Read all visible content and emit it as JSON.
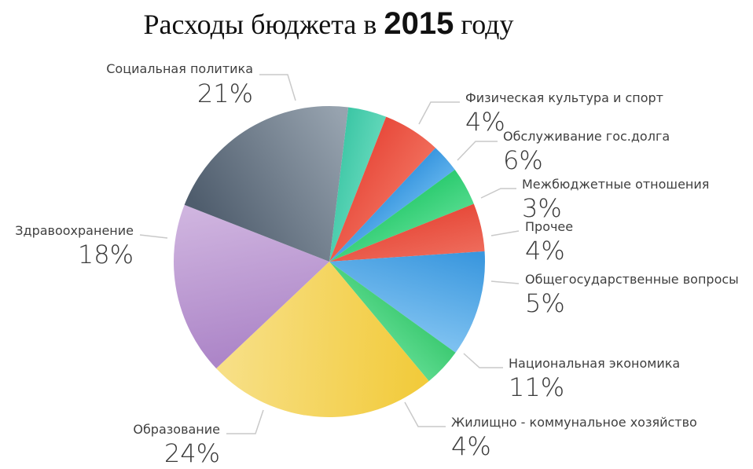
{
  "title": {
    "prefix": "Расходы бюджета в",
    "year": "2015",
    "suffix": "году"
  },
  "chart_data": {
    "type": "pie",
    "title": "Расходы бюджета в 2015 году",
    "unit": "%",
    "slices": [
      {
        "label": "Физическая культура и спорт",
        "value": 4,
        "value_label": "4%",
        "color": "#3ec7a6",
        "color_light": "#5fd6b8"
      },
      {
        "label": "Обслуживание гос.долга",
        "value": 6,
        "value_label": "6%",
        "color": "#e84c3d",
        "color_light": "#f06a58"
      },
      {
        "label": "Межбюджетные отношения",
        "value": 3,
        "value_label": "3%",
        "color": "#3b98e0",
        "color_light": "#5aaeea"
      },
      {
        "label": "Прочее",
        "value": 4,
        "value_label": "4%",
        "color": "#2ecc71",
        "color_light": "#4fd98a"
      },
      {
        "label": "Общегосударственные вопросы",
        "value": 5,
        "value_label": "5%",
        "color": "#e74c3c",
        "color_light": "#ee6a5a"
      },
      {
        "label": "Национальная экономика",
        "value": 11,
        "value_label": "11%",
        "color": "#3a97de",
        "color_light": "#7cc0f0"
      },
      {
        "label": "Жилищно - коммунальное хозяйство",
        "value": 4,
        "value_label": "4%",
        "color": "#3fcb74",
        "color_light": "#5ad98c"
      },
      {
        "label": "Образование",
        "value": 24,
        "value_label": "24%",
        "color": "#f2cb3c",
        "color_light": "#f7df85"
      },
      {
        "label": "Здравоохранение",
        "value": 18,
        "value_label": "18%",
        "color": "#ad86c8",
        "color_light": "#cfb4df"
      },
      {
        "label": "Социальная политика",
        "value": 21,
        "value_label": "21%",
        "color": "#4f5d6d",
        "color_light": "#97a3af"
      }
    ]
  }
}
